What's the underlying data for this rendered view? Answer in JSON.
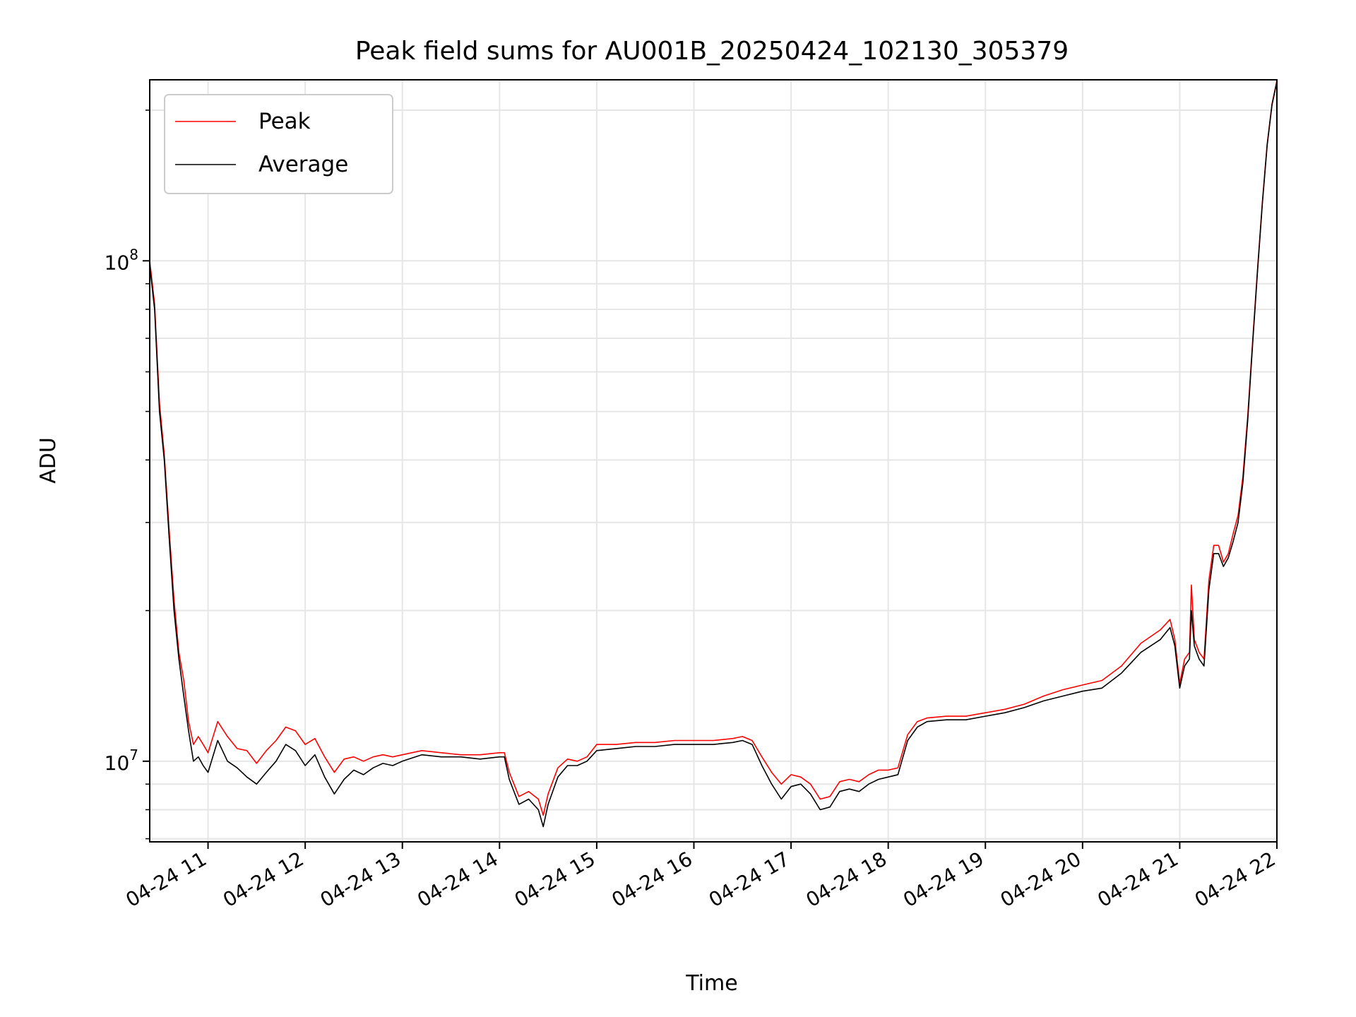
{
  "chart_data": {
    "type": "line",
    "title": "Peak field sums for AU001B_20250424_102130_305379",
    "xlabel": "Time",
    "ylabel": "ADU",
    "x_unit": "hour of 2025-04-24",
    "xlim": [
      10.4,
      22.0
    ],
    "ylim": [
      6900000,
      230000000
    ],
    "yscale": "log",
    "grid": true,
    "legend": {
      "placement": "top-left",
      "entries": [
        "Peak",
        "Average"
      ]
    },
    "x_ticks": [
      {
        "value": 11,
        "label": "04-24 11"
      },
      {
        "value": 12,
        "label": "04-24 12"
      },
      {
        "value": 13,
        "label": "04-24 13"
      },
      {
        "value": 14,
        "label": "04-24 14"
      },
      {
        "value": 15,
        "label": "04-24 15"
      },
      {
        "value": 16,
        "label": "04-24 16"
      },
      {
        "value": 17,
        "label": "04-24 17"
      },
      {
        "value": 18,
        "label": "04-24 18"
      },
      {
        "value": 19,
        "label": "04-24 19"
      },
      {
        "value": 20,
        "label": "04-24 20"
      },
      {
        "value": 21,
        "label": "04-24 21"
      },
      {
        "value": 22,
        "label": "04-24 22"
      }
    ],
    "y_ticks": [
      {
        "value": 10000000,
        "base": "10",
        "exp": "7"
      },
      {
        "value": 100000000,
        "base": "10",
        "exp": "8"
      }
    ],
    "series": [
      {
        "name": "Average",
        "color": "#000000",
        "x": [
          10.4,
          10.45,
          10.5,
          10.55,
          10.6,
          10.65,
          10.7,
          10.75,
          10.8,
          10.85,
          10.9,
          10.95,
          11.0,
          11.1,
          11.2,
          11.3,
          11.4,
          11.5,
          11.6,
          11.7,
          11.8,
          11.9,
          12.0,
          12.1,
          12.2,
          12.3,
          12.4,
          12.5,
          12.6,
          12.7,
          12.8,
          12.9,
          13.0,
          13.2,
          13.4,
          13.6,
          13.8,
          14.0,
          14.05,
          14.1,
          14.2,
          14.3,
          14.4,
          14.45,
          14.5,
          14.6,
          14.7,
          14.8,
          14.9,
          15.0,
          15.2,
          15.4,
          15.6,
          15.8,
          16.0,
          16.2,
          16.4,
          16.5,
          16.6,
          16.7,
          16.8,
          16.9,
          17.0,
          17.1,
          17.2,
          17.3,
          17.4,
          17.5,
          17.6,
          17.7,
          17.8,
          17.9,
          18.0,
          18.1,
          18.2,
          18.3,
          18.4,
          18.6,
          18.8,
          19.0,
          19.2,
          19.4,
          19.6,
          19.8,
          20.0,
          20.2,
          20.4,
          20.6,
          20.8,
          20.9,
          20.95,
          21.0,
          21.05,
          21.1,
          21.12,
          21.15,
          21.2,
          21.25,
          21.3,
          21.35,
          21.4,
          21.45,
          21.5,
          21.55,
          21.6,
          21.65,
          21.7,
          21.75,
          21.8,
          21.85,
          21.9,
          21.95,
          22.0
        ],
        "y": [
          98000000,
          80000000,
          50000000,
          40000000,
          28000000,
          20000000,
          16000000,
          13500000,
          11500000,
          10000000,
          10200000,
          9800000,
          9500000,
          11000000,
          10000000,
          9700000,
          9300000,
          9000000,
          9500000,
          10000000,
          10800000,
          10500000,
          9800000,
          10300000,
          9300000,
          8600000,
          9200000,
          9600000,
          9400000,
          9700000,
          9900000,
          9800000,
          10000000,
          10300000,
          10200000,
          10200000,
          10100000,
          10200000,
          10200000,
          9200000,
          8200000,
          8400000,
          8000000,
          7400000,
          8200000,
          9300000,
          9800000,
          9800000,
          10000000,
          10500000,
          10600000,
          10700000,
          10700000,
          10800000,
          10800000,
          10800000,
          10900000,
          11000000,
          10800000,
          9800000,
          9000000,
          8400000,
          8900000,
          9000000,
          8600000,
          8000000,
          8100000,
          8700000,
          8800000,
          8700000,
          9000000,
          9200000,
          9300000,
          9400000,
          11000000,
          11700000,
          12000000,
          12100000,
          12100000,
          12300000,
          12500000,
          12800000,
          13200000,
          13500000,
          13800000,
          14000000,
          15000000,
          16500000,
          17500000,
          18500000,
          17000000,
          14000000,
          15500000,
          16000000,
          20000000,
          17000000,
          16000000,
          15500000,
          22000000,
          26000000,
          26000000,
          24500000,
          25500000,
          27500000,
          30000000,
          36000000,
          48000000,
          68000000,
          95000000,
          130000000,
          170000000,
          205000000,
          228000000
        ]
      },
      {
        "name": "Peak",
        "color": "#ff0000",
        "x": [
          10.4,
          10.45,
          10.5,
          10.55,
          10.6,
          10.65,
          10.7,
          10.75,
          10.8,
          10.85,
          10.9,
          10.95,
          11.0,
          11.1,
          11.2,
          11.3,
          11.4,
          11.5,
          11.6,
          11.7,
          11.8,
          11.9,
          12.0,
          12.1,
          12.2,
          12.3,
          12.4,
          12.5,
          12.6,
          12.7,
          12.8,
          12.9,
          13.0,
          13.2,
          13.4,
          13.6,
          13.8,
          14.0,
          14.05,
          14.1,
          14.2,
          14.3,
          14.4,
          14.45,
          14.5,
          14.6,
          14.7,
          14.8,
          14.9,
          15.0,
          15.2,
          15.4,
          15.6,
          15.8,
          16.0,
          16.2,
          16.4,
          16.5,
          16.6,
          16.7,
          16.8,
          16.9,
          17.0,
          17.1,
          17.2,
          17.3,
          17.4,
          17.5,
          17.6,
          17.7,
          17.8,
          17.9,
          18.0,
          18.1,
          18.2,
          18.3,
          18.4,
          18.6,
          18.8,
          19.0,
          19.2,
          19.4,
          19.6,
          19.8,
          20.0,
          20.2,
          20.4,
          20.6,
          20.8,
          20.9,
          20.95,
          21.0,
          21.05,
          21.1,
          21.12,
          21.15,
          21.2,
          21.25,
          21.3,
          21.35,
          21.4,
          21.45,
          21.5,
          21.55,
          21.6,
          21.65,
          21.7,
          21.75,
          21.8,
          21.85,
          21.9,
          21.95,
          22.0
        ],
        "y": [
          100000000,
          82000000,
          52000000,
          41000000,
          29000000,
          21000000,
          16500000,
          14500000,
          12000000,
          10800000,
          11200000,
          10800000,
          10400000,
          12000000,
          11200000,
          10600000,
          10500000,
          9900000,
          10500000,
          11000000,
          11700000,
          11500000,
          10800000,
          11100000,
          10200000,
          9500000,
          10100000,
          10200000,
          10000000,
          10200000,
          10300000,
          10200000,
          10300000,
          10500000,
          10400000,
          10300000,
          10300000,
          10400000,
          10400000,
          9500000,
          8500000,
          8700000,
          8400000,
          7800000,
          8600000,
          9700000,
          10100000,
          10000000,
          10200000,
          10800000,
          10800000,
          10900000,
          10900000,
          11000000,
          11000000,
          11000000,
          11100000,
          11200000,
          11000000,
          10200000,
          9500000,
          9000000,
          9400000,
          9300000,
          9000000,
          8400000,
          8500000,
          9100000,
          9200000,
          9100000,
          9400000,
          9600000,
          9600000,
          9700000,
          11300000,
          12000000,
          12200000,
          12300000,
          12300000,
          12500000,
          12700000,
          13000000,
          13500000,
          13900000,
          14200000,
          14500000,
          15500000,
          17200000,
          18300000,
          19200000,
          17500000,
          14300000,
          16000000,
          16500000,
          22500000,
          17500000,
          16500000,
          16000000,
          23000000,
          27000000,
          27000000,
          25000000,
          26000000,
          28500000,
          31000000,
          37000000,
          49000000,
          69000000,
          96000000,
          131000000,
          171000000,
          206000000,
          229000000
        ]
      }
    ]
  }
}
